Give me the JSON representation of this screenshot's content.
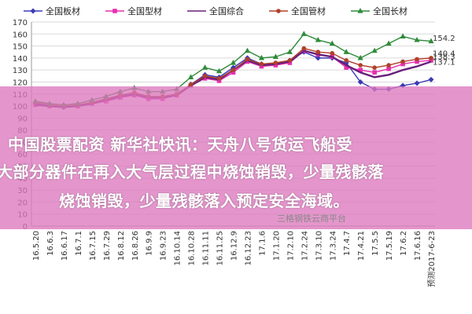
{
  "chart_data": {
    "type": "line",
    "title": "",
    "xlabel": "",
    "ylabel": "",
    "ylim": [
      0,
      170
    ],
    "ytick_step": 10,
    "grid": true,
    "legend_position": "top",
    "x": [
      "16.5.20",
      "16.6.3",
      "16.6.17",
      "16.7.1",
      "16.7.15",
      "16.7.29",
      "16.8.12",
      "16.8.26",
      "16.9.9",
      "16.9.23",
      "16.10.14",
      "16.10.28",
      "16.11.11",
      "16.11.25",
      "16.12.9",
      "16.12.23",
      "17.1.6",
      "17.1.20",
      "17.2.10",
      "17.2.24",
      "17.3.10",
      "17.3.24",
      "17.4.7",
      "17.4.21",
      "17.5.5",
      "17.5.19",
      "17.6.2",
      "17.6.16",
      "17.6.23"
    ],
    "x_tick_labels": [
      "16.5.20",
      "16.6.3",
      "16.6.17",
      "16.7.1",
      "16.7.15",
      "16.7.29",
      "16.8.12",
      "16.8.26",
      "16.9.9",
      "16.9.23",
      "16.10.14",
      "16.10.28",
      "16.11.11",
      "16.11.25",
      "16.12.9",
      "16.12.23",
      "17.1.6",
      "17.1.20",
      "17.2.10",
      "17.2.24",
      "17.3.10",
      "17.3.24",
      "17.4.7",
      "17.4.21",
      "17.5.5",
      "17.5.19",
      "17.6.2",
      "17.6.16",
      "预测2017-6-23"
    ],
    "series": [
      {
        "name": "全国板材",
        "color": "#3a3ab5",
        "marker": "diamond",
        "values": [
          102,
          100,
          99,
          100,
          103,
          106,
          109,
          111,
          108,
          107,
          109,
          118,
          126,
          124,
          132,
          140,
          135,
          135,
          138,
          145,
          140,
          140,
          136,
          120,
          114,
          114,
          117,
          119,
          122
        ]
      },
      {
        "name": "全国型材",
        "color": "#e62fb0",
        "marker": "square",
        "values": [
          101,
          100,
          100,
          100,
          102,
          104,
          107,
          109,
          106,
          106,
          109,
          117,
          123,
          121,
          128,
          137,
          133,
          134,
          136,
          146,
          143,
          141,
          132,
          130,
          128,
          131,
          135,
          137,
          138
        ]
      },
      {
        "name": "全国综合",
        "color": "#6a1f7a",
        "marker": "none",
        "values": [
          101,
          100,
          99,
          100,
          102,
          105,
          108,
          110,
          107,
          107,
          109,
          117,
          124,
          122,
          130,
          138,
          134,
          135,
          137,
          146,
          143,
          141,
          134,
          128,
          124,
          126,
          130,
          133,
          137
        ]
      },
      {
        "name": "全国管材",
        "color": "#b0402a",
        "marker": "circle",
        "values": [
          103,
          101,
          100,
          101,
          103,
          106,
          109,
          111,
          108,
          108,
          110,
          118,
          125,
          123,
          130,
          139,
          135,
          136,
          138,
          148,
          145,
          144,
          138,
          134,
          132,
          134,
          137,
          139,
          140
        ]
      },
      {
        "name": "全国长材",
        "color": "#2e8b3a",
        "marker": "triangle",
        "values": [
          104,
          102,
          101,
          102,
          105,
          108,
          112,
          115,
          112,
          112,
          114,
          124,
          132,
          129,
          136,
          146,
          140,
          141,
          145,
          160,
          155,
          152,
          145,
          140,
          146,
          152,
          158,
          155,
          154
        ]
      }
    ],
    "end_labels": [
      "154.2",
      "140.4",
      "138.3",
      "137.1"
    ]
  },
  "overlay": {
    "line1": "中国股票配资 新华社快讯：天舟八号货运飞船受",
    "line2": "大部分器件在再入大气层过程中烧蚀销毁，少量残骸落",
    "line3": "烧蚀销毁，少量残骸落入预定安全海域。"
  },
  "source_text": "三格钢铁云商平台"
}
